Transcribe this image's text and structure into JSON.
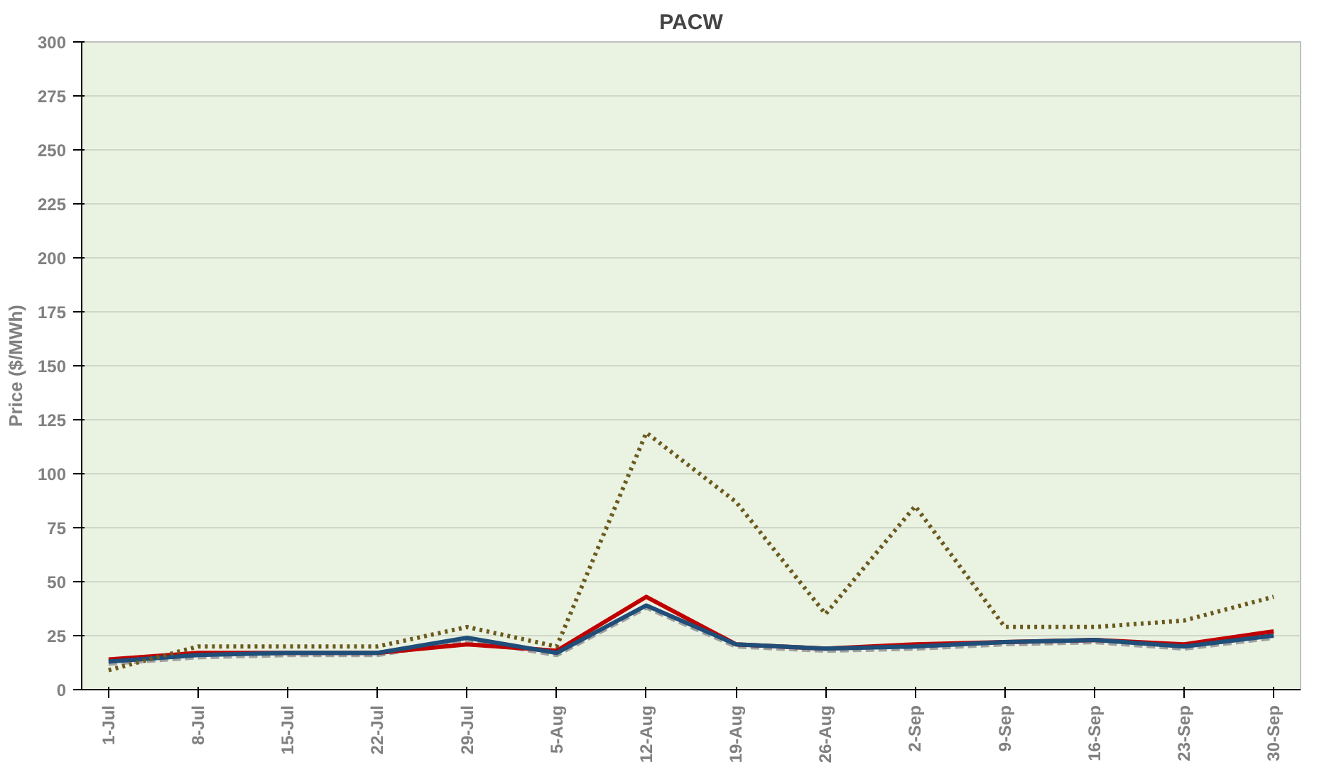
{
  "chart_data": {
    "type": "line",
    "title": "PACW",
    "ylabel": "Price ($/MWh)",
    "categories": [
      "1-Jul",
      "8-Jul",
      "15-Jul",
      "22-Jul",
      "29-Jul",
      "5-Aug",
      "12-Aug",
      "19-Aug",
      "26-Aug",
      "2-Sep",
      "9-Sep",
      "16-Sep",
      "23-Sep",
      "30-Sep"
    ],
    "ylim": [
      0,
      300
    ],
    "yticks": [
      0,
      25,
      50,
      75,
      100,
      125,
      150,
      175,
      200,
      225,
      250,
      275,
      300
    ],
    "grid": "y",
    "series": [
      {
        "color": "#a0a0a0",
        "line_style": "dashed",
        "values": [
          12,
          15,
          16,
          16,
          23,
          16,
          38,
          20,
          18,
          19,
          21,
          22,
          19,
          24
        ]
      },
      {
        "color": "#c00000",
        "line_style": "solid",
        "values": [
          14,
          17,
          17,
          17,
          21,
          18,
          43,
          21,
          19,
          21,
          22,
          23,
          21,
          27
        ]
      },
      {
        "color": "#1f4e79",
        "line_style": "solid",
        "values": [
          13,
          16,
          17,
          17,
          24,
          17,
          39,
          21,
          19,
          20,
          22,
          23,
          20,
          25
        ]
      },
      {
        "color": "#6b5a1e",
        "line_style": "dotted",
        "values": [
          9,
          20,
          20,
          20,
          29,
          20,
          119,
          87,
          35,
          85,
          29,
          29,
          32,
          43
        ]
      }
    ]
  }
}
